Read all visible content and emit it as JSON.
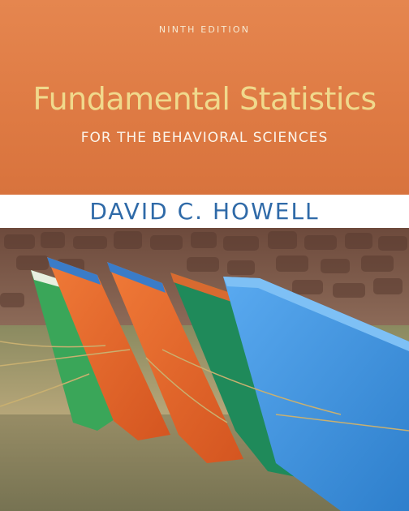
{
  "cover": {
    "edition": "NINTH EDITION",
    "title": "Fundamental Statistics",
    "subtitle": "FOR THE BEHAVIORAL SCIENCES",
    "author": "DAVID C. HOWELL"
  },
  "colors": {
    "band": "#de7a43",
    "title": "#f0d98c",
    "subtitle": "#fbf4ea",
    "author": "#2f6aa8",
    "boat_green": "#3aa659",
    "boat_orange": "#e8652a",
    "boat_teal": "#1f8a5a",
    "boat_blue": "#3b8fd8"
  },
  "photo_description_icon": "boats-photo"
}
